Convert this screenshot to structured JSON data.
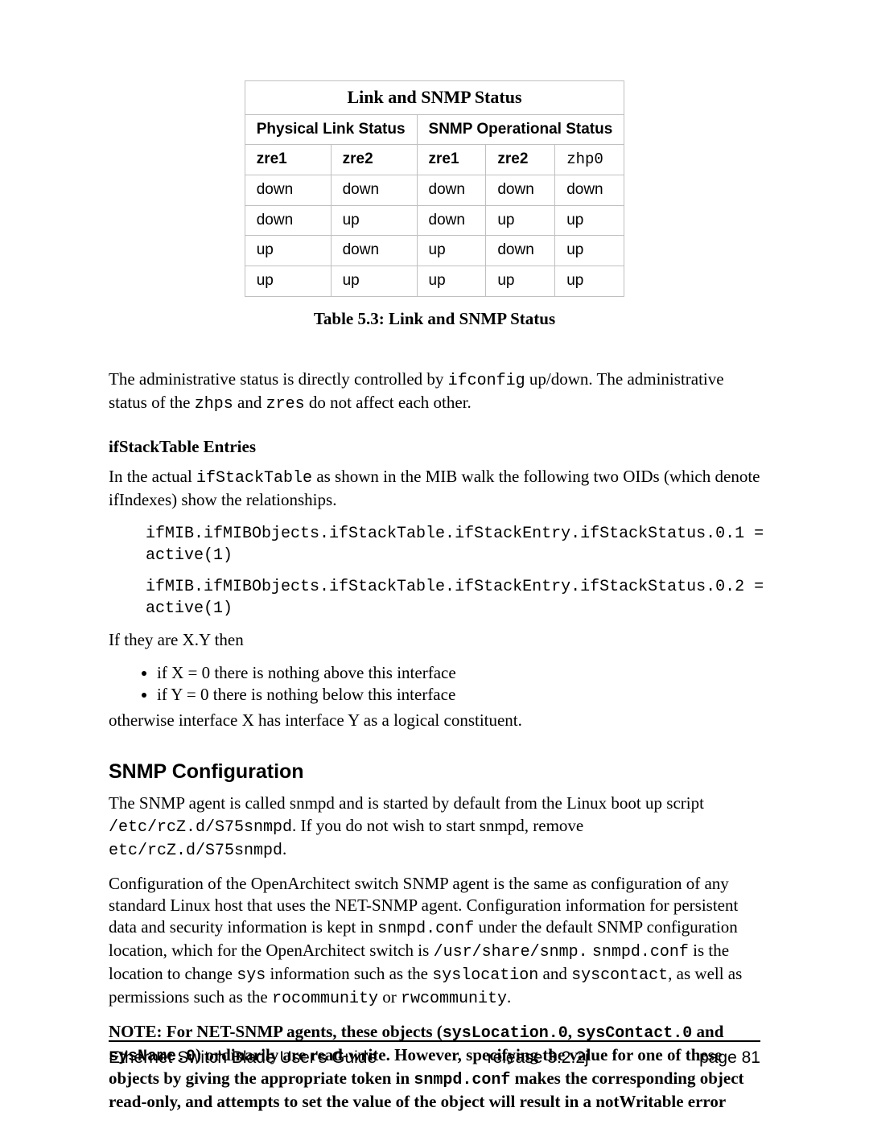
{
  "table": {
    "title": "Link and SNMP Status",
    "hdr_left": "Physical Link Status",
    "hdr_right": "SNMP Operational Status",
    "sub": {
      "c0": "zre1",
      "c1": "zre2",
      "c2": "zre1",
      "c3": "zre2",
      "c4": "zhp0"
    },
    "rows": [
      {
        "c0": "down",
        "c1": "down",
        "c2": "down",
        "c3": "down",
        "c4": "down"
      },
      {
        "c0": "down",
        "c1": "up",
        "c2": "down",
        "c3": "up",
        "c4": "up"
      },
      {
        "c0": "up",
        "c1": "down",
        "c2": "up",
        "c3": "down",
        "c4": "up"
      },
      {
        "c0": "up",
        "c1": "up",
        "c2": "up",
        "c3": "up",
        "c4": "up"
      }
    ],
    "caption": "Table 5.3: Link and SNMP Status"
  },
  "para1_a": "The administrative status is directly controlled by ",
  "para1_code": "ifconfig",
  "para1_b": " up/down. The administrative status of the ",
  "para1_code2": "zhps",
  "para1_c": " and ",
  "para1_code3": "zres",
  "para1_d": " do not affect each other.",
  "sub1": "ifStackTable Entries",
  "para2_a": "In the actual ",
  "para2_code": "ifStackTable",
  "para2_b": " as shown in the MIB walk the following two OIDs (which denote ifIndexes) show the relationships.",
  "code1": "ifMIB.ifMIBObjects.ifStackTable.ifStackEntry.ifStackStatus.0.1 =\nactive(1)",
  "code2": "ifMIB.ifMIBObjects.ifStackTable.ifStackEntry.ifStackStatus.0.2 =\nactive(1)",
  "para3": "If they are X.Y then",
  "bullet1": "if X = 0 there is nothing above this interface",
  "bullet2": "if Y = 0 there is nothing below this interface",
  "para4": "otherwise interface X has interface Y as a logical constituent.",
  "section": "SNMP Configuration",
  "p5_a": "The SNMP agent is called snmpd and is started by default from the Linux boot up script ",
  "p5_code1": "/etc/rcZ.d/S75snmpd",
  "p5_b": ". If you do not wish to start snmpd,  remove ",
  "p5_code2": "etc/rcZ.d/S75snmpd",
  "p5_c": ".",
  "p6_a": "Configuration of the OpenArchitect switch SNMP agent is the same as configuration of any standard Linux host that uses the NET-SNMP agent. Configuration information for persistent data and security information is kept in ",
  "p6_code1": "snmpd.conf",
  "p6_b": "  under the default SNMP configuration location, which for the OpenArchitect switch is ",
  "p6_code2": "/usr/share/snmp.",
  "p6_c": "  ",
  "p6_code3": "snmpd.conf",
  "p6_d": " is the location to change ",
  "p6_code4": "sys",
  "p6_e": " information such as the ",
  "p6_code5": "syslocation",
  "p6_f": " and ",
  "p6_code6": "syscontact",
  "p6_g": ", as well as permissions such as the ",
  "p6_code7": "rocommunity",
  "p6_h": " or ",
  "p6_code8": "rwcommunity",
  "p6_i": ".",
  "note_a": "NOTE: For NET-SNMP agents, these objects (",
  "note_code1": "sysLocation.0",
  "note_b": ", ",
  "note_code2": "sysContact.0",
  "note_c": " and ",
  "note_code3": "sysName.0",
  "note_d": ") ordinarily are read-write.   However, specifying the value for one of these objects by giving the appropriate token in ",
  "note_code4": "snmpd.conf",
  "note_e": " makes the corresponding object read-only, and attempts to set the value of  the  object will result in a notWritable error",
  "footer": {
    "left": "Ethernet Switch Blade User's Guide",
    "mid": "release  3.2.2j",
    "right": "page 81"
  }
}
